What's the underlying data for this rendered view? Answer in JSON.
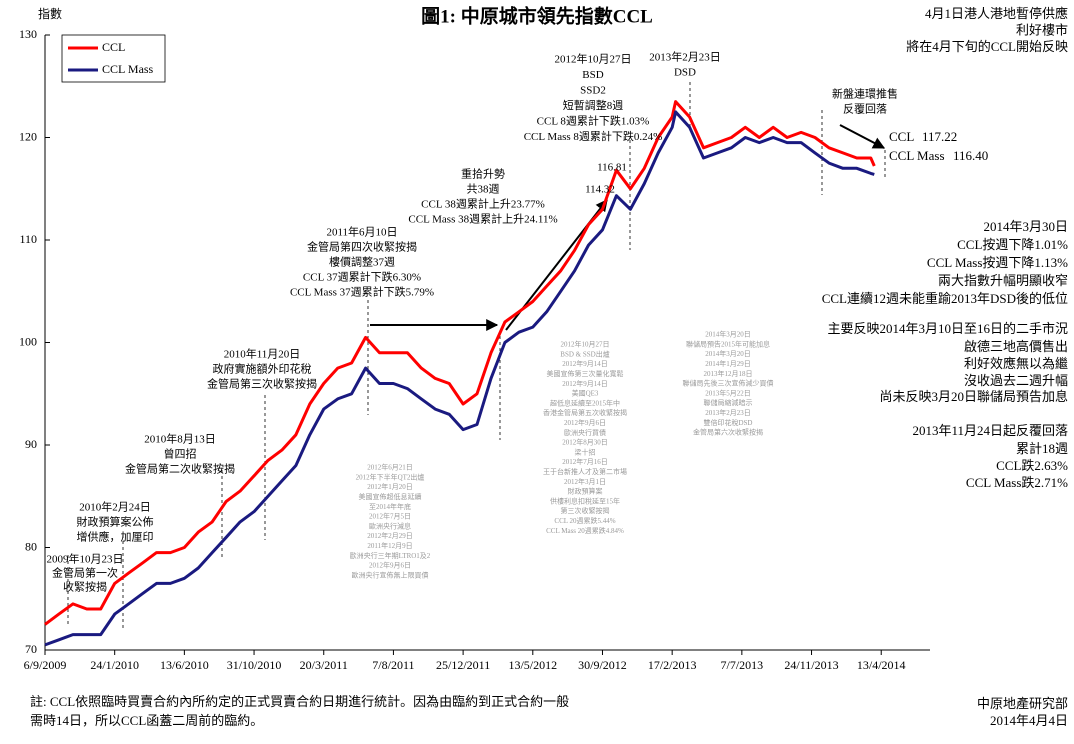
{
  "chart_data": {
    "type": "line",
    "title": "圖1: 中原城市領先指數CCL",
    "y_label": "指數",
    "top_note": [
      "4月1日港人港地暫停供應",
      "利好樓市",
      "將在4月下旬的CCL開始反映"
    ],
    "side_notes": [
      "2014年3月30日",
      "CCL按週下降1.01%",
      "CCL Mass按週下降1.13%",
      "兩大指數升幅明顯收窄",
      "CCL連續12週未能重踰2013年DSD後的低位",
      "主要反映2014年3月10日至16日的二手市況",
      "啟德三地高價售出",
      "利好效應無以為繼",
      "沒收過去二週升幅",
      "尚未反映3月20日聯儲局預告加息",
      "2013年11月24日起反覆回落",
      "累計18週",
      "CCL跌2.63%",
      "CCL Mass跌2.71%"
    ],
    "footnote": [
      "註: CCL依照臨時買賣合約內所約定的正式買賣合約日期進行統計。因為由臨約到正式合約一般",
      "需時14日，所以CCL函蓋二周前的臨約。"
    ],
    "source": [
      "中原地產研究部",
      "2014年4月4日"
    ],
    "annotations": [
      {
        "lines": [
          "2009年10月23日",
          "金管局第一次",
          "收緊按揭"
        ]
      },
      {
        "lines": [
          "2010年2月24日",
          "財政預算案公佈",
          "增供應，加厘印"
        ]
      },
      {
        "lines": [
          "2010年8月13日",
          "曾四招",
          "金管局第二次收緊按揭"
        ]
      },
      {
        "lines": [
          "2010年11月20日",
          "政府實施額外印花稅",
          "金管局第三次收緊按揭"
        ]
      },
      {
        "lines": [
          "2011年6月10日",
          "金管局第四次收緊按揭",
          "樓價調整37週",
          "CCL 37週累計下跌6.30%",
          "CCL Mass 37週累計下跌5.79%"
        ]
      },
      {
        "lines": [
          "重拾升勢",
          "共38週",
          "CCL 38週累計上升23.77%",
          "CCL Mass 38週累計上升24.11%"
        ]
      },
      {
        "lines": [
          "2012年10月27日",
          "BSD",
          "SSD2",
          "短暫調整8週",
          "CCL 8週累計下跌1.03%",
          "CCL Mass 8週累計下跌0.24%"
        ]
      },
      {
        "lines": [
          "2013年2月23日",
          "DSD"
        ]
      },
      {
        "lines": [
          "新盤連環推售",
          "反覆回落"
        ]
      }
    ],
    "background_notes": [
      {
        "lines": [
          "2012年6月21日",
          "2012年下半年QT2出爐",
          "2012年1月20日",
          "美國宣佈超低息延續",
          "至2014年年底",
          "2012年7月5日",
          "歐洲央行減息",
          "2012年2月29日",
          "2011年12月9日",
          "歐洲央行三年期LTRO1及2",
          "2012年9月6日",
          "歐洲央行宣佈無上限買債"
        ]
      },
      {
        "lines": [
          "2012年10月27日",
          "BSD & SSD出爐",
          "2012年9月14日",
          "美國宣佈第三次量化寬鬆",
          "2012年9月14日",
          "美國QE3",
          "超低息延續至2015年中",
          "香港金管局第五次收緊按揭",
          "2012年9月6日",
          "歐洲央行買債",
          "2012年8月30日",
          "梁十招",
          "2012年7月16日",
          "王于台新推人才及第二市場",
          "2012年3月1日",
          "財政預算案",
          "供樓利息扣稅延至15年",
          "第三次收緊按揭",
          "CCL 20週累跌5.44%",
          "CCL Mass 20週累跌4.84%"
        ]
      },
      {
        "lines": [
          "2014年3月20日",
          "聯儲局預告2015年可能加息",
          "2014年3月20日",
          "2014年1月29日",
          "2013年12月18日",
          "聯儲局先後三次宣佈減少買債",
          "2013年5月22日",
          "聯儲局縮減暗示",
          "2013年2月23日",
          "雙倍印花稅DSD",
          "金管局第六次收緊按揭"
        ]
      }
    ],
    "x": [
      "2009-09-06",
      "2009-10-04",
      "2009-11-01",
      "2009-11-29",
      "2009-12-27",
      "2010-01-24",
      "2010-02-21",
      "2010-03-21",
      "2010-04-18",
      "2010-05-16",
      "2010-06-13",
      "2010-07-11",
      "2010-08-08",
      "2010-09-05",
      "2010-10-03",
      "2010-10-31",
      "2010-11-28",
      "2010-12-26",
      "2011-01-23",
      "2011-02-20",
      "2011-03-20",
      "2011-04-17",
      "2011-05-15",
      "2011-06-12",
      "2011-07-10",
      "2011-08-07",
      "2011-09-04",
      "2011-10-02",
      "2011-10-30",
      "2011-11-27",
      "2011-12-25",
      "2012-01-22",
      "2012-02-19",
      "2012-03-18",
      "2012-04-15",
      "2012-05-13",
      "2012-06-10",
      "2012-07-08",
      "2012-08-05",
      "2012-09-02",
      "2012-09-30",
      "2012-10-28",
      "2012-11-25",
      "2012-12-23",
      "2013-01-20",
      "2013-02-17",
      "2013-02-24",
      "2013-03-24",
      "2013-04-21",
      "2013-05-19",
      "2013-06-16",
      "2013-07-14",
      "2013-08-11",
      "2013-09-08",
      "2013-10-06",
      "2013-11-03",
      "2013-12-01",
      "2013-12-29",
      "2014-01-26",
      "2014-02-23",
      "2014-03-23",
      "2014-03-30"
    ],
    "series": [
      {
        "name": "CCL",
        "color": "#ff0000",
        "values": [
          72.5,
          73.5,
          74.5,
          74,
          74,
          76.5,
          77.5,
          78.5,
          79.5,
          79.5,
          80,
          81.5,
          82.5,
          84.5,
          85.5,
          87,
          88.5,
          89.5,
          91,
          94,
          96,
          97.5,
          98,
          100.5,
          99,
          99,
          99,
          97.5,
          96.5,
          96,
          94,
          95,
          99,
          102,
          103,
          104,
          105.5,
          107,
          109,
          111.5,
          113,
          116.81,
          115,
          117,
          120,
          122,
          123.5,
          122,
          119,
          119.5,
          120,
          121,
          120,
          121,
          120,
          120.5,
          120,
          119,
          118.5,
          118,
          118,
          117.22
        ]
      },
      {
        "name": "CCL Mass",
        "color": "#1a1a80",
        "values": [
          70.5,
          71,
          71.5,
          71.5,
          71.5,
          73.5,
          74.5,
          75.5,
          76.5,
          76.5,
          77,
          78,
          79.5,
          81,
          82.5,
          83.5,
          85,
          86.5,
          88,
          91,
          93.5,
          94.5,
          95,
          97.5,
          96,
          96,
          95.5,
          94.5,
          93.5,
          93,
          91.5,
          92,
          96.5,
          100,
          101,
          101.5,
          103,
          105,
          107,
          109.5,
          111,
          114.32,
          113,
          115.5,
          118.5,
          121,
          122.5,
          121,
          118,
          118.5,
          119,
          120,
          119.5,
          120,
          119.5,
          119.5,
          118.5,
          117.5,
          117,
          117,
          116.5,
          116.4
        ],
        "value_labels": [
          null,
          null,
          null,
          null,
          null,
          null,
          null,
          null,
          null,
          null,
          null,
          null,
          null,
          null,
          null,
          null,
          null,
          null,
          null,
          null,
          null,
          null,
          null,
          null,
          null,
          null,
          null,
          null,
          null,
          null,
          null,
          null,
          null,
          null,
          null,
          null,
          null,
          null,
          null,
          null,
          null,
          null,
          null,
          null,
          null,
          null,
          null,
          null,
          null,
          null,
          null,
          null,
          null,
          null,
          null,
          null,
          null,
          null,
          null,
          null,
          null,
          "116.40"
        ]
      }
    ],
    "xlim": [
      "2009-09-06",
      "2014-07-20"
    ],
    "xticks": [
      {
        "value": "2009-09-06",
        "label": "6/9/2009"
      },
      {
        "value": "2010-01-24",
        "label": "24/1/2010"
      },
      {
        "value": "2010-06-13",
        "label": "13/6/2010"
      },
      {
        "value": "2010-10-31",
        "label": "31/10/2010"
      },
      {
        "value": "2011-03-20",
        "label": "20/3/2011"
      },
      {
        "value": "2011-08-07",
        "label": "7/8/2011"
      },
      {
        "value": "2011-12-25",
        "label": "25/12/2011"
      },
      {
        "value": "2012-05-13",
        "label": "13/5/2012"
      },
      {
        "value": "2012-09-30",
        "label": "30/9/2012"
      },
      {
        "value": "2013-02-17",
        "label": "17/2/2013"
      },
      {
        "value": "2013-07-07",
        "label": "7/7/2013"
      },
      {
        "value": "2013-11-24",
        "label": "24/11/2013"
      },
      {
        "value": "2014-04-13",
        "label": "13/4/2014"
      }
    ],
    "ylim": [
      70,
      130
    ],
    "yticks": [
      70,
      80,
      90,
      100,
      110,
      120,
      130
    ],
    "grid": false,
    "legend": "upper-left"
  }
}
